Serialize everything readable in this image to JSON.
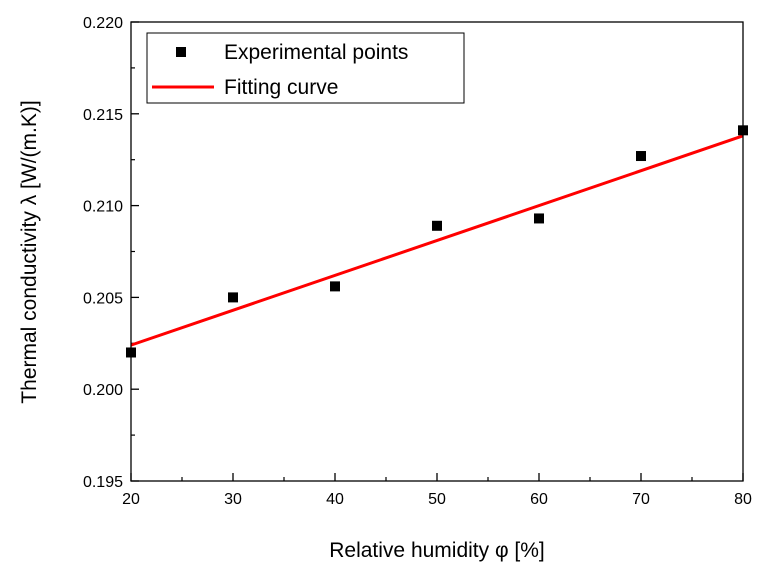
{
  "chart_data": {
    "type": "scatter",
    "title": "",
    "xlabel": "Relative humidity φ [%]",
    "ylabel": "Thermal conductivity λ [W/(m.K)]",
    "xlim": [
      20,
      80
    ],
    "ylim": [
      0.195,
      0.22
    ],
    "xticks": [
      "20",
      "30",
      "40",
      "50",
      "60",
      "70",
      "80"
    ],
    "yticks": [
      "0.195",
      "0.200",
      "0.205",
      "0.210",
      "0.215",
      "0.220"
    ],
    "grid": false,
    "legend_position": "top-left",
    "series": [
      {
        "name": "Experimental points",
        "kind": "scatter",
        "marker": "square",
        "color": "#000000",
        "x": [
          20,
          30,
          40,
          50,
          60,
          70,
          80
        ],
        "y": [
          0.202,
          0.205,
          0.2056,
          0.2089,
          0.2093,
          0.2127,
          0.2141
        ]
      },
      {
        "name": "Fitting curve",
        "kind": "line",
        "color": "#ff0000",
        "x": [
          20,
          80
        ],
        "y": [
          0.2024,
          0.2138
        ]
      }
    ]
  }
}
